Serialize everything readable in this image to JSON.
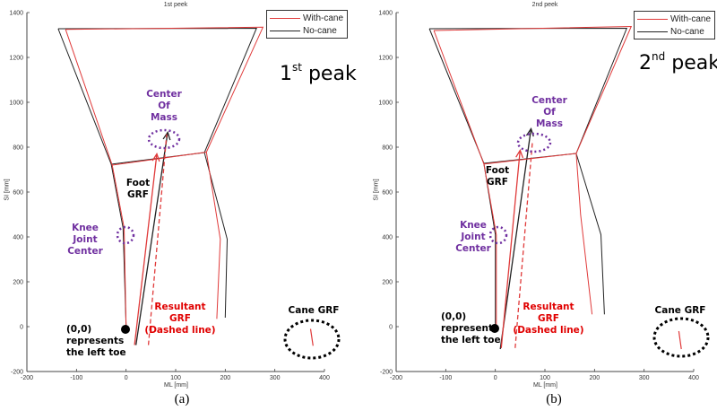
{
  "chart_data": [
    {
      "type": "line",
      "panel_caption": "(a)",
      "title": "1st peek",
      "overlay_title": {
        "main": "1",
        "sup": "st",
        "rest": " peak"
      },
      "xlabel": "ML [mm]",
      "ylabel": "SI [mm]",
      "xlim": [
        -200,
        400
      ],
      "ylim": [
        -200,
        1400
      ],
      "xticks": [
        -200,
        -100,
        0,
        100,
        200,
        300,
        400
      ],
      "yticks": [
        -200,
        0,
        200,
        400,
        600,
        800,
        1000,
        1200,
        1400
      ],
      "grid": false,
      "legend_position": "top-right",
      "series": [
        {
          "name": "With-cane",
          "color": "#e03a3a",
          "trunk": [
            [
              -122,
              1325
            ],
            [
              276,
              1335
            ],
            [
              162,
              778
            ],
            [
              -28,
              720
            ],
            [
              -122,
              1325
            ]
          ],
          "left_leg": [
            [
              -28,
              720
            ],
            [
              -4,
              440
            ],
            [
              0,
              0
            ]
          ],
          "right_leg": [
            [
              162,
              778
            ],
            [
              190,
              390
            ],
            [
              183,
              35
            ]
          ],
          "foot_grf": [
            [
              17,
              -82
            ],
            [
              62,
              770
            ]
          ],
          "resultant_grf": [
            [
              45,
              -82
            ],
            [
              82,
              858
            ]
          ],
          "cane_grf": [
            [
              372,
              -10
            ],
            [
              377,
              -85
            ]
          ]
        },
        {
          "name": "No-cane",
          "color": "#222222",
          "trunk": [
            [
              -137,
              1328
            ],
            [
              263,
              1330
            ],
            [
              158,
              776
            ],
            [
              -30,
              724
            ],
            [
              -137,
              1328
            ]
          ],
          "left_leg": [
            [
              -30,
              724
            ],
            [
              -6,
              440
            ],
            [
              0,
              0
            ]
          ],
          "right_leg": [
            [
              158,
              776
            ],
            [
              204,
              390
            ],
            [
              200,
              40
            ]
          ],
          "foot_grf": [
            [
              20,
              -82
            ],
            [
              84,
              866
            ]
          ]
        }
      ],
      "annotations": {
        "com": [
          "Center",
          "Of",
          "Mass"
        ],
        "foot_grf": [
          "Foot",
          "GRF"
        ],
        "knee": [
          "Knee",
          "Joint",
          "Center"
        ],
        "origin": [
          "(0,0)",
          "represents",
          "the left toe"
        ],
        "resultant": [
          "Resultant",
          "GRF",
          "(Dashed line)"
        ],
        "cane": [
          "Cane GRF"
        ]
      }
    },
    {
      "type": "line",
      "panel_caption": "(b)",
      "title": "2nd peek",
      "overlay_title": {
        "main": "2",
        "sup": "nd",
        "rest": " peak"
      },
      "xlabel": "ML [mm]",
      "ylabel": "SI [mm]",
      "xlim": [
        -200,
        400
      ],
      "ylim": [
        -200,
        1400
      ],
      "xticks": [
        -200,
        -100,
        0,
        100,
        200,
        300,
        400
      ],
      "yticks": [
        -200,
        0,
        200,
        400,
        600,
        800,
        1000,
        1200,
        1400
      ],
      "grid": false,
      "legend_position": "top-right",
      "series": [
        {
          "name": "With-cane",
          "color": "#e03a3a",
          "trunk": [
            [
              -124,
              1320
            ],
            [
              274,
              1338
            ],
            [
              163,
              772
            ],
            [
              -23,
              725
            ],
            [
              -124,
              1320
            ]
          ],
          "left_leg": [
            [
              -23,
              725
            ],
            [
              2,
              410
            ],
            [
              2,
              0
            ]
          ],
          "right_leg": [
            [
              163,
              772
            ],
            [
              172,
              500
            ],
            [
              195,
              55
            ]
          ],
          "foot_grf": [
            [
              12,
              -95
            ],
            [
              50,
              786
            ]
          ],
          "resultant_grf": [
            [
              40,
              -95
            ],
            [
              75,
              830
            ]
          ],
          "cane_grf": [
            [
              370,
              -20
            ],
            [
              375,
              -100
            ]
          ]
        },
        {
          "name": "No-cane",
          "color": "#222222",
          "trunk": [
            [
              -133,
              1328
            ],
            [
              265,
              1330
            ],
            [
              163,
              772
            ],
            [
              -23,
              728
            ],
            [
              -133,
              1328
            ]
          ],
          "left_leg": [
            [
              -23,
              728
            ],
            [
              0,
              410
            ],
            [
              0,
              0
            ]
          ],
          "right_leg": [
            [
              163,
              772
            ],
            [
              213,
              410
            ],
            [
              220,
              55
            ]
          ],
          "foot_grf": [
            [
              10,
              -100
            ],
            [
              72,
              882
            ]
          ]
        }
      ],
      "annotations": {
        "com": [
          "Center",
          "Of",
          "Mass"
        ],
        "foot_grf": [
          "Foot",
          "GRF"
        ],
        "knee": [
          "Knee",
          "Joint",
          "Center"
        ],
        "origin": [
          "(0,0)",
          "represents",
          "the left toe"
        ],
        "resultant": [
          "Resultant",
          "GRF",
          "(Dashed line)"
        ],
        "cane": [
          "Cane GRF"
        ]
      }
    }
  ]
}
